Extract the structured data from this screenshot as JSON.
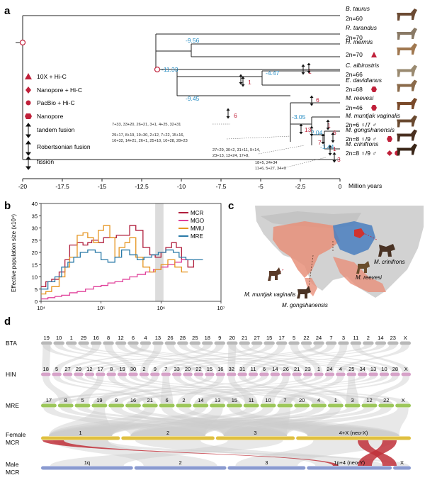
{
  "panels": {
    "a": "a",
    "b": "b",
    "c": "c",
    "d": "d"
  },
  "panel_a": {
    "taxa": [
      {
        "name": "B. taurus",
        "karyotype": "2n=60",
        "marks": []
      },
      {
        "name": "R. tarandus",
        "karyotype": "2n=70",
        "marks": []
      },
      {
        "name": "H. inermis",
        "karyotype": "2n=70",
        "marks": [
          "triangle"
        ]
      },
      {
        "name": "C. albirostris",
        "karyotype": "2n=66",
        "marks": []
      },
      {
        "name": "E. davidianus",
        "karyotype": "2n=68",
        "marks": [
          "hexagon"
        ]
      },
      {
        "name": "M. reevesi",
        "karyotype": "2n=46",
        "marks": [
          "hexagon"
        ]
      },
      {
        "name": "M. muntjak vaginalis",
        "karyotype": "2n=6 ♀/7 ♂",
        "marks": []
      },
      {
        "name": "M. gongshanensis",
        "karyotype": "2n=8 ♀/9 ♂",
        "marks": [
          "hexagon"
        ]
      },
      {
        "name": "M. crinifrons",
        "karyotype": "2n=8 ♀/9 ♂",
        "marks": [
          "diamond",
          "circle"
        ]
      }
    ],
    "node_ages": [
      "-9.56",
      "-11.33",
      "-4.47",
      "-9.45",
      "-3.05",
      "-2.04",
      "-1.44"
    ],
    "event_counts": [
      "1",
      "1",
      "6",
      "6",
      "13",
      "7",
      "1",
      "6",
      "1",
      "3"
    ],
    "fusion_notes": [
      "7+33, 33+20, 26+21, 3+1, 4+25, 32+31",
      "29+17, 8+19, 19+30, 2+12, 7+22, 15+16,",
      "16+32, 14+21, 26+1, 25+10, 10+28, 28+23",
      "27+29, 30+2, 31+11, 9+14,",
      "23+13, 13+24, 17+8,",
      "18+5, 24+34",
      "11+6, 5+27, 34+X"
    ],
    "legend": [
      {
        "symbol": "triangle",
        "label": "10X + Hi-C"
      },
      {
        "symbol": "diamond",
        "label": "Nanopore + Hi-C"
      },
      {
        "symbol": "circle",
        "label": "PacBio + Hi-C"
      },
      {
        "symbol": "hexagon",
        "label": "Nanopore"
      },
      {
        "symbol": "tandem",
        "label": "tandem fusion"
      },
      {
        "symbol": "robertsonian",
        "label": "Robertsonian fusion"
      },
      {
        "symbol": "fission",
        "label": "fission"
      }
    ],
    "axis_ticks": [
      "-20",
      "-17.5",
      "-15",
      "-12.5",
      "-10",
      "-7.5",
      "-5",
      "-2.5",
      "0"
    ],
    "axis_label": "Million years",
    "colors": {
      "node_age": "#2a8fc4",
      "count": "#c0203a",
      "symbol": "#c0203a",
      "tree": "#222222"
    }
  },
  "chart_data": {
    "type": "line",
    "ylabel": "Effective population size (x10⁴)",
    "x_scale": "log",
    "xlim": [
      10000,
      10000000
    ],
    "ylim": [
      0,
      40
    ],
    "x_ticks": [
      "10⁴",
      "10⁵",
      "10⁶",
      "10⁷"
    ],
    "y_ticks": [
      "0",
      "5",
      "10",
      "15",
      "20",
      "25",
      "30",
      "35",
      "40"
    ],
    "grid": false,
    "legend_position": "top-right",
    "shaded_region_x": [
      800000,
      1100000
    ],
    "series": [
      {
        "name": "MCR",
        "color": "#b01e3c",
        "x": [
          10000,
          12000,
          15000,
          20000,
          25000,
          30000,
          40000,
          50000,
          60000,
          70000,
          90000,
          110000,
          140000,
          180000,
          230000,
          300000,
          380000,
          500000,
          650000,
          800000,
          1000000,
          1200000,
          1500000,
          1800000,
          2200000,
          2800000,
          3500000
        ],
        "y": [
          6,
          8,
          9,
          12,
          17,
          23,
          24,
          23,
          24,
          25,
          24,
          26,
          26,
          27,
          27,
          31,
          29,
          22,
          19,
          18,
          20,
          22,
          24,
          22,
          17,
          14,
          17
        ]
      },
      {
        "name": "MGO",
        "color": "#e0409a",
        "x": [
          10000,
          13000,
          17000,
          22000,
          30000,
          40000,
          55000,
          75000,
          100000,
          130000,
          170000,
          230000,
          300000,
          400000,
          550000,
          750000,
          1000000,
          1300000,
          1700000,
          2200000,
          2800000
        ],
        "y": [
          1,
          1.5,
          2,
          2.5,
          3.5,
          4,
          5,
          6,
          6.5,
          7.5,
          8,
          9,
          10,
          11,
          12,
          13,
          14,
          15,
          16,
          17,
          17
        ]
      },
      {
        "name": "MMU",
        "color": "#e69520",
        "x": [
          10000,
          12000,
          15000,
          20000,
          25000,
          30000,
          40000,
          50000,
          60000,
          75000,
          90000,
          110000,
          140000,
          170000,
          200000,
          250000,
          300000,
          380000,
          500000,
          650000,
          800000,
          1000000,
          1300000,
          1700000,
          2200000,
          2800000
        ],
        "y": [
          3,
          4,
          6,
          10,
          14,
          18,
          27,
          28,
          26,
          24,
          29,
          31,
          26,
          18,
          22,
          24,
          26,
          18,
          14,
          12,
          13,
          15,
          17,
          14,
          12,
          12
        ]
      },
      {
        "name": "MRE",
        "color": "#2a7aa8",
        "x": [
          10000,
          13000,
          17000,
          22000,
          28000,
          35000,
          45000,
          60000,
          80000,
          100000,
          130000,
          170000,
          220000,
          300000,
          400000,
          520000,
          700000,
          900000,
          1200000,
          1600000,
          2000000,
          2600000,
          3500000,
          5000000
        ],
        "y": [
          5,
          8,
          10,
          14,
          16,
          18,
          20,
          21,
          20,
          17,
          16,
          18,
          21,
          19,
          17,
          18,
          19,
          20,
          21,
          20,
          18,
          17,
          17,
          17
        ]
      }
    ]
  },
  "panel_c": {
    "labels": [
      "M. crinifrons",
      "M. reevesi",
      "M. muntjak vaginalis",
      "M. gongshanensis"
    ],
    "colors": {
      "range_muntjak": "#e8907a",
      "range_reevesi": "#4a7fc0",
      "range_crinifrons": "#d0332e",
      "land": "#cfcfcf"
    }
  },
  "panel_d": {
    "tracks": [
      {
        "label": "BTA",
        "color": "#b8b8b8",
        "chromosomes": [
          "19",
          "10",
          "1",
          "29",
          "16",
          "8",
          "12",
          "6",
          "4",
          "13",
          "26",
          "28",
          "25",
          "18",
          "9",
          "20",
          "21",
          "27",
          "15",
          "17",
          "5",
          "22",
          "24",
          "7",
          "3",
          "11",
          "2",
          "14",
          "23",
          "X"
        ]
      },
      {
        "label": "HIN",
        "color": "#d6a2c8",
        "chromosomes": [
          "18",
          "5",
          "27",
          "29",
          "12",
          "17",
          "8",
          "19",
          "30",
          "2",
          "9",
          "7",
          "33",
          "20",
          "22",
          "15",
          "16",
          "32",
          "31",
          "11",
          "6",
          "14",
          "26",
          "21",
          "23",
          "1",
          "24",
          "4",
          "25",
          "34",
          "13",
          "10",
          "28",
          "X"
        ]
      },
      {
        "label": "MRE",
        "color": "#9cc75a",
        "chromosomes": [
          "17",
          "8",
          "5",
          "19",
          "9",
          "16",
          "21",
          "6",
          "2",
          "14",
          "13",
          "15",
          "11",
          "10",
          "7",
          "20",
          "4",
          "1",
          "3",
          "12",
          "22",
          "X"
        ]
      },
      {
        "label": "Female MCR",
        "color": "#e0c040",
        "chromosomes": [
          "1",
          "2",
          "3",
          "4+X (neo-X)"
        ]
      },
      {
        "label": "Male MCR",
        "color": "#8a9ad0",
        "chromosomes": [
          "1q",
          "2",
          "3",
          "1p+4 (neo-Y)",
          "X"
        ]
      }
    ],
    "colors": {
      "ribbon": "#cccccc",
      "highlight": "#c0303a"
    }
  }
}
